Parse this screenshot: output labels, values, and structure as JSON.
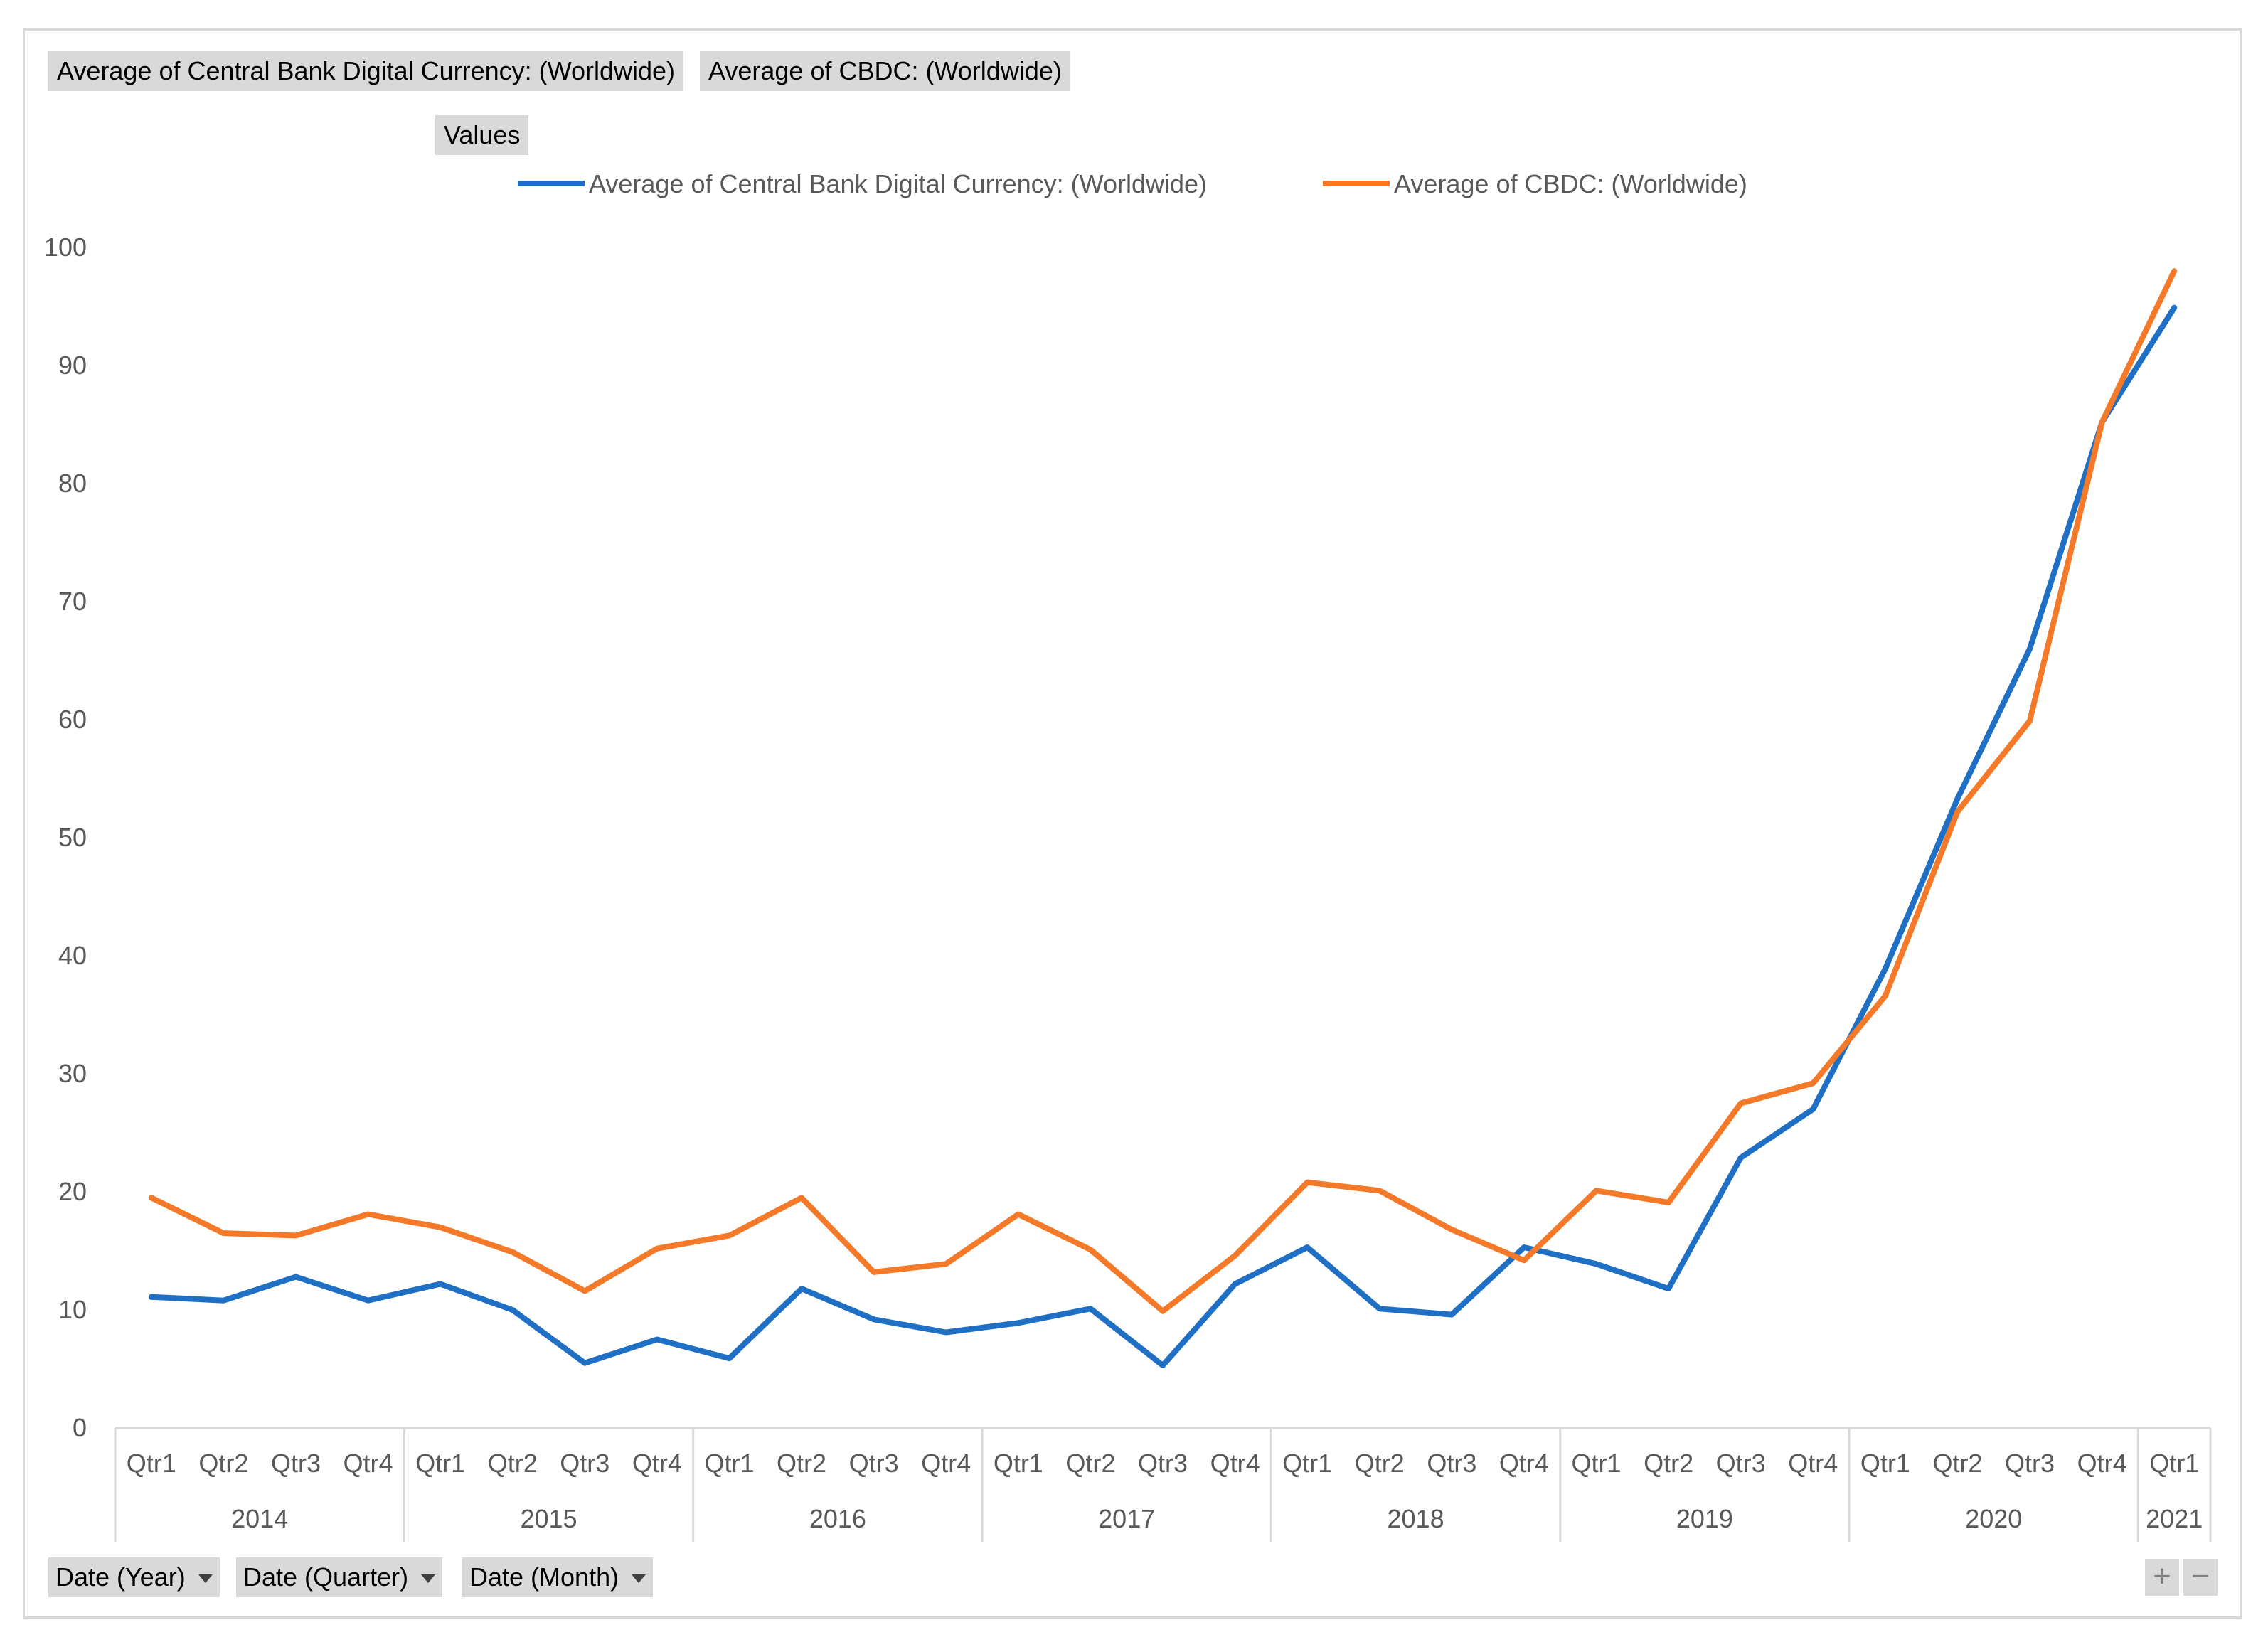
{
  "pivot_fields": {
    "value_field_1": "Average of Central Bank Digital Currency: (Worldwide)",
    "value_field_2": "Average of CBDC: (Worldwide)",
    "values_label": "Values"
  },
  "filters": {
    "year": "Date (Year)",
    "quarter": "Date (Quarter)",
    "month": "Date (Month)"
  },
  "zoom": {
    "plus": "+",
    "minus": "−"
  },
  "colors": {
    "series1": "#1f6fc5",
    "series2": "#f47a2a",
    "grid": "#d9d9d9",
    "text": "#595959"
  },
  "chart_data": {
    "type": "line",
    "title": "",
    "xlabel": "",
    "ylabel": "",
    "ylim": [
      0,
      100
    ],
    "yticks": [
      0,
      10,
      20,
      30,
      40,
      50,
      60,
      70,
      80,
      90,
      100
    ],
    "categories": [
      "Qtr1",
      "Qtr2",
      "Qtr3",
      "Qtr4",
      "Qtr1",
      "Qtr2",
      "Qtr3",
      "Qtr4",
      "Qtr1",
      "Qtr2",
      "Qtr3",
      "Qtr4",
      "Qtr1",
      "Qtr2",
      "Qtr3",
      "Qtr4",
      "Qtr1",
      "Qtr2",
      "Qtr3",
      "Qtr4",
      "Qtr1",
      "Qtr2",
      "Qtr3",
      "Qtr4",
      "Qtr1",
      "Qtr2",
      "Qtr3",
      "Qtr4",
      "Qtr1"
    ],
    "years": [
      {
        "label": "2014",
        "count": 4
      },
      {
        "label": "2015",
        "count": 4
      },
      {
        "label": "2016",
        "count": 4
      },
      {
        "label": "2017",
        "count": 4
      },
      {
        "label": "2018",
        "count": 4
      },
      {
        "label": "2019",
        "count": 4
      },
      {
        "label": "2020",
        "count": 4
      },
      {
        "label": "2021",
        "count": 1
      }
    ],
    "legend_position": "top",
    "series": [
      {
        "name": "Average of Central Bank Digital Currency: (Worldwide)",
        "values": [
          11.1,
          10.8,
          12.8,
          10.8,
          12.2,
          10.0,
          5.5,
          7.5,
          5.9,
          11.8,
          9.2,
          8.1,
          8.9,
          10.1,
          5.3,
          12.2,
          15.3,
          10.1,
          9.6,
          15.3,
          13.9,
          11.8,
          22.9,
          27.0,
          38.9,
          53.3,
          66.0,
          85.2,
          94.9
        ]
      },
      {
        "name": "Average of CBDC: (Worldwide)",
        "values": [
          19.5,
          16.5,
          16.3,
          18.1,
          17.0,
          14.9,
          11.6,
          15.2,
          16.3,
          19.5,
          13.2,
          13.9,
          18.1,
          15.1,
          9.9,
          14.6,
          20.8,
          20.1,
          16.8,
          14.2,
          20.1,
          19.1,
          27.5,
          29.2,
          36.6,
          52.2,
          59.9,
          85.2,
          98.0
        ]
      }
    ]
  }
}
